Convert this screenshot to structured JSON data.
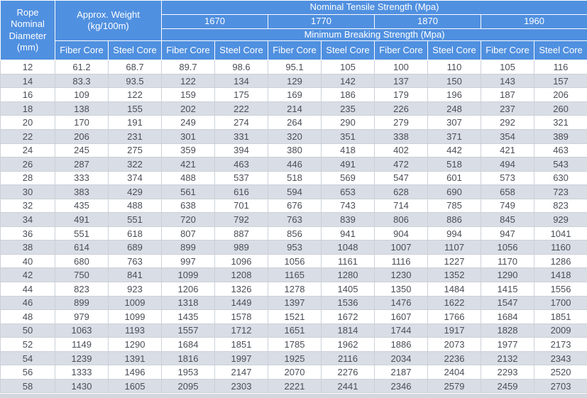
{
  "chart_data": {
    "type": "table",
    "header": {
      "corner": "Rope Nominal Diameter (mm)",
      "weight_group": "Approx. Weight (kg/100m)",
      "tensile_group": "Nominal Tensile Strength  (Mpa)",
      "breaking_group": "Minimum Breaking Strength (Mpa)",
      "grades": [
        "1670",
        "1770",
        "1870",
        "1960"
      ],
      "core_columns": [
        "Fiber Core",
        "Steel Core",
        "Fiber Core",
        "Steel Core",
        "Fiber Core",
        "Steel Core",
        "Fiber Core",
        "Steel Core",
        "Fiber Core",
        "Steel Core"
      ]
    },
    "rows": [
      [
        "12",
        "61.2",
        "68.7",
        "89.7",
        "98.6",
        "95.1",
        "105",
        "100",
        "110",
        "105",
        "116"
      ],
      [
        "14",
        "83.3",
        "93.5",
        "122",
        "134",
        "129",
        "142",
        "137",
        "150",
        "143",
        "157"
      ],
      [
        "16",
        "109",
        "122",
        "159",
        "175",
        "169",
        "186",
        "179",
        "196",
        "187",
        "206"
      ],
      [
        "18",
        "138",
        "155",
        "202",
        "222",
        "214",
        "235",
        "226",
        "248",
        "237",
        "260"
      ],
      [
        "20",
        "170",
        "191",
        "249",
        "274",
        "264",
        "290",
        "279",
        "307",
        "292",
        "321"
      ],
      [
        "22",
        "206",
        "231",
        "301",
        "331",
        "320",
        "351",
        "338",
        "371",
        "354",
        "389"
      ],
      [
        "24",
        "245",
        "275",
        "359",
        "394",
        "380",
        "418",
        "402",
        "442",
        "421",
        "463"
      ],
      [
        "26",
        "287",
        "322",
        "421",
        "463",
        "446",
        "491",
        "472",
        "518",
        "494",
        "543"
      ],
      [
        "28",
        "333",
        "374",
        "488",
        "537",
        "518",
        "569",
        "547",
        "601",
        "573",
        "630"
      ],
      [
        "30",
        "383",
        "429",
        "561",
        "616",
        "594",
        "653",
        "628",
        "690",
        "658",
        "723"
      ],
      [
        "32",
        "435",
        "488",
        "638",
        "701",
        "676",
        "743",
        "714",
        "785",
        "749",
        "823"
      ],
      [
        "34",
        "491",
        "551",
        "720",
        "792",
        "763",
        "839",
        "806",
        "886",
        "845",
        "929"
      ],
      [
        "36",
        "551",
        "618",
        "807",
        "887",
        "856",
        "941",
        "904",
        "994",
        "947",
        "1041"
      ],
      [
        "38",
        "614",
        "689",
        "899",
        "989",
        "953",
        "1048",
        "1007",
        "1107",
        "1056",
        "1160"
      ],
      [
        "40",
        "680",
        "763",
        "997",
        "1096",
        "1056",
        "1161",
        "1116",
        "1227",
        "1170",
        "1286"
      ],
      [
        "42",
        "750",
        "841",
        "1099",
        "1208",
        "1165",
        "1280",
        "1230",
        "1352",
        "1290",
        "1418"
      ],
      [
        "44",
        "823",
        "923",
        "1206",
        "1326",
        "1278",
        "1405",
        "1350",
        "1484",
        "1415",
        "1556"
      ],
      [
        "46",
        "899",
        "1009",
        "1318",
        "1449",
        "1397",
        "1536",
        "1476",
        "1622",
        "1547",
        "1700"
      ],
      [
        "48",
        "979",
        "1099",
        "1435",
        "1578",
        "1521",
        "1672",
        "1607",
        "1766",
        "1684",
        "1851"
      ],
      [
        "50",
        "1063",
        "1193",
        "1557",
        "1712",
        "1651",
        "1814",
        "1744",
        "1917",
        "1828",
        "2009"
      ],
      [
        "52",
        "1149",
        "1290",
        "1684",
        "1851",
        "1785",
        "1962",
        "1886",
        "2073",
        "1977",
        "2173"
      ],
      [
        "54",
        "1239",
        "1391",
        "1816",
        "1997",
        "1925",
        "2116",
        "2034",
        "2236",
        "2132",
        "2343"
      ],
      [
        "56",
        "1333",
        "1496",
        "1953",
        "2147",
        "2070",
        "2276",
        "2187",
        "2404",
        "2293",
        "2520"
      ],
      [
        "58",
        "1430",
        "1605",
        "2095",
        "2303",
        "2221",
        "2441",
        "2346",
        "2579",
        "2459",
        "2703"
      ]
    ],
    "colors": {
      "header_blue": "#5090e0",
      "row_alt": "#d9dde5",
      "row_white": "#ffffff",
      "cell_border": "#ccd1d8",
      "text": "#4b4e57"
    }
  }
}
